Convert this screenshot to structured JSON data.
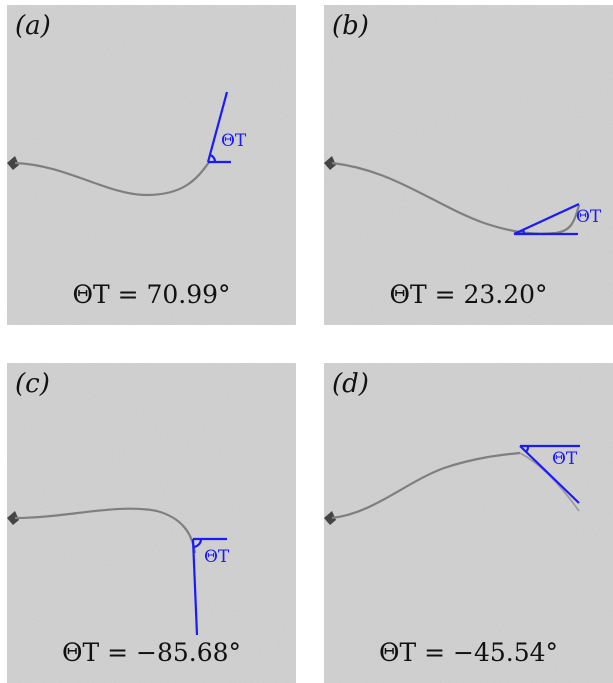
{
  "colors": {
    "overlay": "#1a1aff",
    "background": "#cfcfcf",
    "filament": "#808080"
  },
  "theta_label": "ΘT",
  "panels": [
    {
      "tag": "(a)",
      "caption": "ΘT = 70.99°",
      "theta_deg": 70.99
    },
    {
      "tag": "(b)",
      "caption": "ΘT = 23.20°",
      "theta_deg": 23.2
    },
    {
      "tag": "(c)",
      "caption": "ΘT = −85.68°",
      "theta_deg": -85.68
    },
    {
      "tag": "(d)",
      "caption": "ΘT = −45.54°",
      "theta_deg": -45.54
    }
  ]
}
